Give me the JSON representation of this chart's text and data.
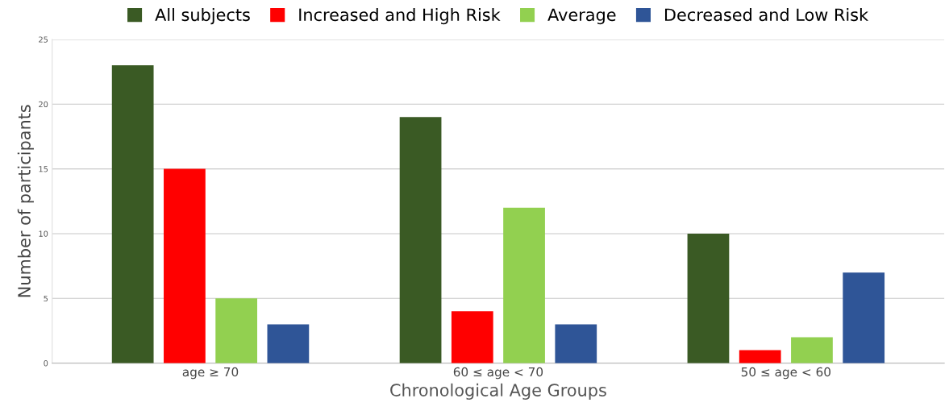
{
  "chart_data": {
    "type": "bar",
    "xlabel": "Chronological Age Groups",
    "ylabel": "Number of participants",
    "categories": [
      "age ≥ 70",
      "60 ≤ age < 70",
      "50 ≤ age < 60"
    ],
    "series": [
      {
        "name": "All subjects",
        "color": "#3a5a24",
        "values": [
          23,
          19,
          10
        ]
      },
      {
        "name": "Increased and High Risk",
        "color": "#ff0000",
        "values": [
          15,
          4,
          1
        ]
      },
      {
        "name": "Average",
        "color": "#92d050",
        "values": [
          5,
          12,
          2
        ]
      },
      {
        "name": "Decreased and Low Risk",
        "color": "#2f5597",
        "values": [
          3,
          3,
          7
        ]
      }
    ],
    "ylim": [
      0,
      25
    ],
    "yticks": [
      0,
      5,
      10,
      15,
      20,
      25
    ],
    "grid": "y",
    "legend": "top"
  }
}
